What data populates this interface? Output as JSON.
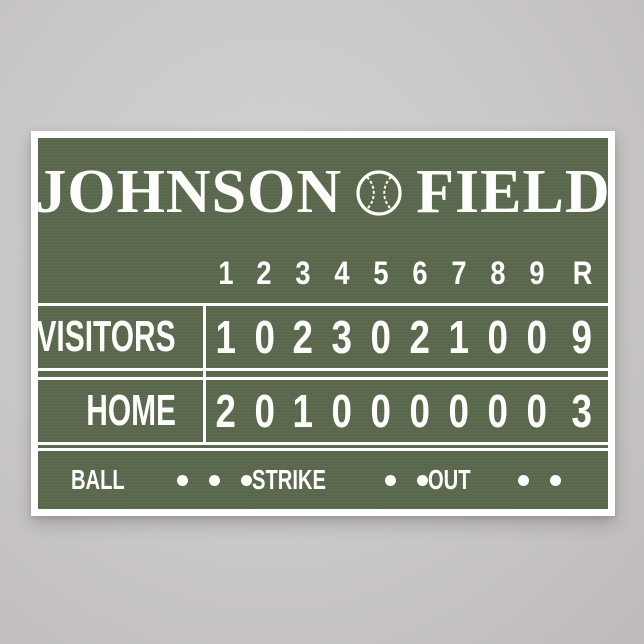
{
  "scoreboard": {
    "title": {
      "word_left": "JOHNSON",
      "word_right": "FIELD",
      "icon": "baseball"
    },
    "innings": [
      "1",
      "2",
      "3",
      "4",
      "5",
      "6",
      "7",
      "8",
      "9",
      "R"
    ],
    "rows": [
      {
        "team": "VISITORS",
        "scores": [
          "1",
          "0",
          "2",
          "3",
          "0",
          "2",
          "1",
          "0",
          "0"
        ],
        "runs": "9"
      },
      {
        "team": "HOME",
        "scores": [
          "2",
          "0",
          "1",
          "0",
          "0",
          "0",
          "0",
          "0",
          "0"
        ],
        "runs": "3"
      }
    ],
    "counters": [
      {
        "label": "BALL",
        "dots": 3
      },
      {
        "label": "STRIKE",
        "dots": 2
      },
      {
        "label": "OUT",
        "dots": 2
      }
    ]
  },
  "colors": {
    "board_green": "#5b694e",
    "board_white": "#fdfdfc",
    "wall_gray": "#cac8c7"
  }
}
